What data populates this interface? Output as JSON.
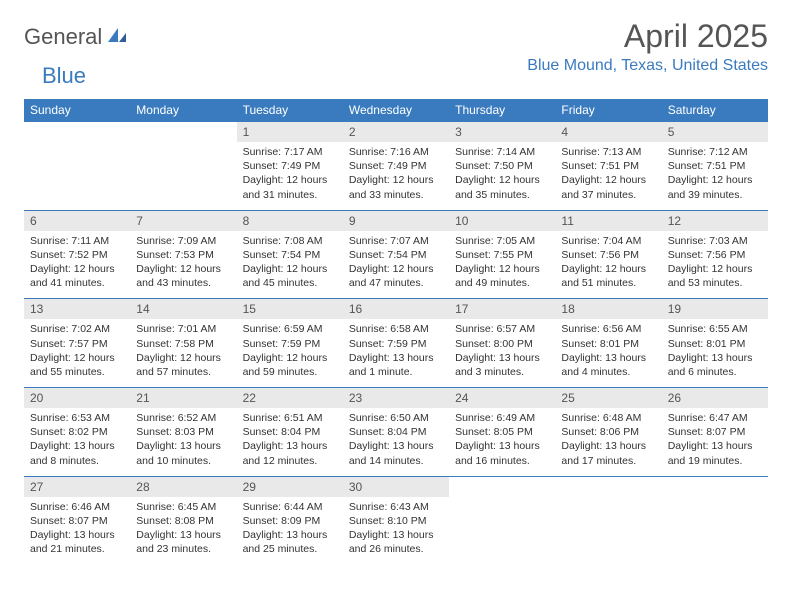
{
  "logo": {
    "part1": "General",
    "part2": "Blue"
  },
  "title": "April 2025",
  "location": "Blue Mound, Texas, United States",
  "colors": {
    "accent": "#3a7bbf",
    "header_bg": "#3a7bbf",
    "header_text": "#ffffff",
    "daynum_bg": "#e9e9e9",
    "text": "#333333",
    "muted": "#555555"
  },
  "weekdays": [
    "Sunday",
    "Monday",
    "Tuesday",
    "Wednesday",
    "Thursday",
    "Friday",
    "Saturday"
  ],
  "weeks": [
    [
      null,
      null,
      {
        "n": "1",
        "sr": "7:17 AM",
        "ss": "7:49 PM",
        "dl": "12 hours and 31 minutes."
      },
      {
        "n": "2",
        "sr": "7:16 AM",
        "ss": "7:49 PM",
        "dl": "12 hours and 33 minutes."
      },
      {
        "n": "3",
        "sr": "7:14 AM",
        "ss": "7:50 PM",
        "dl": "12 hours and 35 minutes."
      },
      {
        "n": "4",
        "sr": "7:13 AM",
        "ss": "7:51 PM",
        "dl": "12 hours and 37 minutes."
      },
      {
        "n": "5",
        "sr": "7:12 AM",
        "ss": "7:51 PM",
        "dl": "12 hours and 39 minutes."
      }
    ],
    [
      {
        "n": "6",
        "sr": "7:11 AM",
        "ss": "7:52 PM",
        "dl": "12 hours and 41 minutes."
      },
      {
        "n": "7",
        "sr": "7:09 AM",
        "ss": "7:53 PM",
        "dl": "12 hours and 43 minutes."
      },
      {
        "n": "8",
        "sr": "7:08 AM",
        "ss": "7:54 PM",
        "dl": "12 hours and 45 minutes."
      },
      {
        "n": "9",
        "sr": "7:07 AM",
        "ss": "7:54 PM",
        "dl": "12 hours and 47 minutes."
      },
      {
        "n": "10",
        "sr": "7:05 AM",
        "ss": "7:55 PM",
        "dl": "12 hours and 49 minutes."
      },
      {
        "n": "11",
        "sr": "7:04 AM",
        "ss": "7:56 PM",
        "dl": "12 hours and 51 minutes."
      },
      {
        "n": "12",
        "sr": "7:03 AM",
        "ss": "7:56 PM",
        "dl": "12 hours and 53 minutes."
      }
    ],
    [
      {
        "n": "13",
        "sr": "7:02 AM",
        "ss": "7:57 PM",
        "dl": "12 hours and 55 minutes."
      },
      {
        "n": "14",
        "sr": "7:01 AM",
        "ss": "7:58 PM",
        "dl": "12 hours and 57 minutes."
      },
      {
        "n": "15",
        "sr": "6:59 AM",
        "ss": "7:59 PM",
        "dl": "12 hours and 59 minutes."
      },
      {
        "n": "16",
        "sr": "6:58 AM",
        "ss": "7:59 PM",
        "dl": "13 hours and 1 minute."
      },
      {
        "n": "17",
        "sr": "6:57 AM",
        "ss": "8:00 PM",
        "dl": "13 hours and 3 minutes."
      },
      {
        "n": "18",
        "sr": "6:56 AM",
        "ss": "8:01 PM",
        "dl": "13 hours and 4 minutes."
      },
      {
        "n": "19",
        "sr": "6:55 AM",
        "ss": "8:01 PM",
        "dl": "13 hours and 6 minutes."
      }
    ],
    [
      {
        "n": "20",
        "sr": "6:53 AM",
        "ss": "8:02 PM",
        "dl": "13 hours and 8 minutes."
      },
      {
        "n": "21",
        "sr": "6:52 AM",
        "ss": "8:03 PM",
        "dl": "13 hours and 10 minutes."
      },
      {
        "n": "22",
        "sr": "6:51 AM",
        "ss": "8:04 PM",
        "dl": "13 hours and 12 minutes."
      },
      {
        "n": "23",
        "sr": "6:50 AM",
        "ss": "8:04 PM",
        "dl": "13 hours and 14 minutes."
      },
      {
        "n": "24",
        "sr": "6:49 AM",
        "ss": "8:05 PM",
        "dl": "13 hours and 16 minutes."
      },
      {
        "n": "25",
        "sr": "6:48 AM",
        "ss": "8:06 PM",
        "dl": "13 hours and 17 minutes."
      },
      {
        "n": "26",
        "sr": "6:47 AM",
        "ss": "8:07 PM",
        "dl": "13 hours and 19 minutes."
      }
    ],
    [
      {
        "n": "27",
        "sr": "6:46 AM",
        "ss": "8:07 PM",
        "dl": "13 hours and 21 minutes."
      },
      {
        "n": "28",
        "sr": "6:45 AM",
        "ss": "8:08 PM",
        "dl": "13 hours and 23 minutes."
      },
      {
        "n": "29",
        "sr": "6:44 AM",
        "ss": "8:09 PM",
        "dl": "13 hours and 25 minutes."
      },
      {
        "n": "30",
        "sr": "6:43 AM",
        "ss": "8:10 PM",
        "dl": "13 hours and 26 minutes."
      },
      null,
      null,
      null
    ]
  ],
  "labels": {
    "sunrise": "Sunrise:",
    "sunset": "Sunset:",
    "daylight": "Daylight:"
  }
}
